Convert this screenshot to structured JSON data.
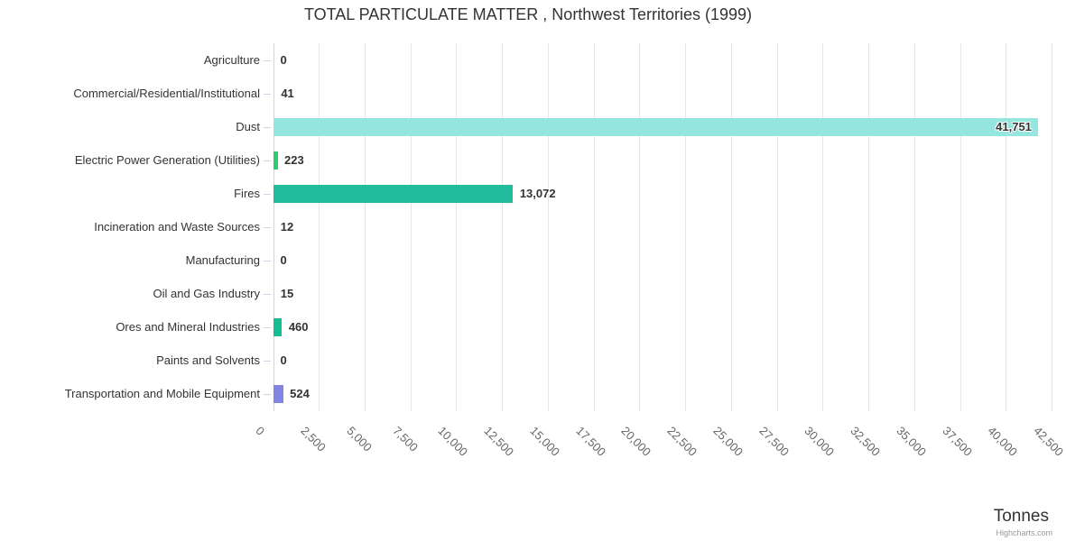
{
  "chart": {
    "title": "TOTAL PARTICULATE MATTER , Northwest Territories (1999)",
    "x_axis_title": "Tonnes",
    "credit": "Highcharts.com"
  },
  "chart_data": {
    "type": "bar",
    "orientation": "horizontal",
    "title": "TOTAL PARTICULATE MATTER , Northwest Territories (1999)",
    "categories": [
      "Agriculture",
      "Commercial/Residential/Institutional",
      "Dust",
      "Electric Power Generation (Utilities)",
      "Fires",
      "Incineration and Waste Sources",
      "Manufacturing",
      "Oil and Gas Industry",
      "Ores and Mineral Industries",
      "Paints and Solvents",
      "Transportation and Mobile Equipment"
    ],
    "values": [
      0,
      41,
      41751,
      223,
      13072,
      12,
      0,
      15,
      460,
      0,
      524
    ],
    "value_labels": [
      "0",
      "41",
      "41,751",
      "223",
      "13,072",
      "12",
      "0",
      "15",
      "460",
      "0",
      "524"
    ],
    "bar_colors": [
      "#cccccc",
      "#cccccc",
      "#94e6de",
      "#2ecc71",
      "#20bc9c",
      "#cccccc",
      "#cccccc",
      "#cccccc",
      "#16bd90",
      "#cccccc",
      "#8286e2"
    ],
    "xlabel": "Tonnes",
    "xlim": [
      0,
      42500
    ],
    "x_tick_values": [
      0,
      2500,
      5000,
      7500,
      10000,
      12500,
      15000,
      17500,
      20000,
      22500,
      25000,
      27500,
      30000,
      32500,
      35000,
      37500,
      40000,
      42500
    ],
    "x_tick_labels": [
      "0",
      "2,500",
      "5,000",
      "7,500",
      "10,000",
      "12,500",
      "15,000",
      "17,500",
      "20,000",
      "22,500",
      "25,000",
      "27,500",
      "30,000",
      "32,500",
      "35,000",
      "37,500",
      "40,000",
      "42,500"
    ],
    "grid": true,
    "legend": "none",
    "colors": {
      "grid": "#e6e6e6",
      "axis_line": "#ccd6eb",
      "category_label": "#333333",
      "value_label": "#333333",
      "tick_label": "#666666",
      "title": "#333333",
      "credit": "#999999"
    }
  }
}
